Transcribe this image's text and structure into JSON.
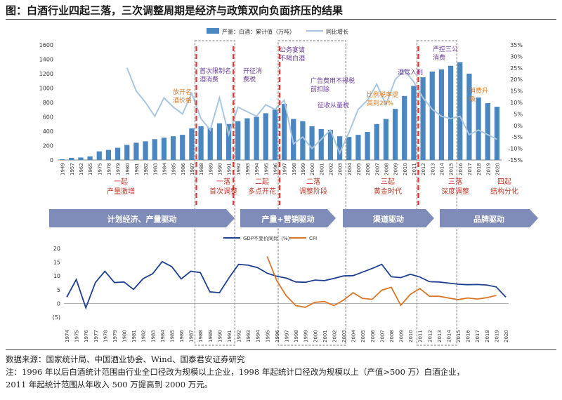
{
  "title": "图：白酒行业四起三落，三次调整周期是经济与政策双向负面挤压的结果",
  "footer": {
    "source": "数据来源：国家统计局、中国酒业协会、Wind、国泰君安证券研究",
    "note1": "注：1996 年以后白酒统计范围由行业全口径改为规模以上企业，1998 年起统计口径改为规模以上（产值>500 万）白酒企业，",
    "note2": "2011 年起统计范围从年收入 500 万提高到 2000 万元。"
  },
  "colors": {
    "bar": "#4a86bf",
    "line": "#a9c6e0",
    "gdp": "#1f3f8f",
    "cpi": "#d9772b",
    "phase_red": "#c0392b",
    "arrow": "#5a6aa8",
    "phase_dashed": "#e53935",
    "purple": "#6a3d9a",
    "orange": "#e07b23"
  },
  "chart_data": [
    {
      "type": "bar",
      "title": "",
      "legend": [
        "产量：白酒：累计值（万吨）",
        "同比增长"
      ],
      "legend_position": "top-right",
      "categories": [
        "1949",
        "1957",
        "1962",
        "1965",
        "1975",
        "1978",
        "1979",
        "1980",
        "1981",
        "1982",
        "1983",
        "1984",
        "1985",
        "1986",
        "1987",
        "1988",
        "1989",
        "1990",
        "1991",
        "1992",
        "1993",
        "1994",
        "1995",
        "1996",
        "1997",
        "1998",
        "1999",
        "2000",
        "2001",
        "2002",
        "2003",
        "2004",
        "2005",
        "2006",
        "2007",
        "2008",
        "2009",
        "2010",
        "2011",
        "2012",
        "2013",
        "2014",
        "2015",
        "2016",
        "2017",
        "2018",
        "2019",
        "2020"
      ],
      "series": [
        {
          "name": "产量：白酒：累计值（万吨）",
          "axis": "left",
          "values": [
            10,
            30,
            35,
            50,
            120,
            140,
            170,
            210,
            240,
            260,
            290,
            310,
            330,
            350,
            440,
            470,
            450,
            510,
            500,
            540,
            580,
            600,
            650,
            700,
            780,
            570,
            540,
            470,
            430,
            420,
            330,
            320,
            350,
            390,
            500,
            570,
            710,
            890,
            1030,
            1150,
            1230,
            1260,
            1310,
            1360,
            1200,
            870,
            790,
            740
          ]
        },
        {
          "name": "同比增长",
          "axis": "right",
          "values": [
            null,
            null,
            null,
            null,
            null,
            null,
            null,
            25,
            15,
            10,
            4,
            12,
            8,
            5,
            14,
            3,
            -2,
            12,
            -4,
            8,
            6,
            4,
            9,
            7,
            11,
            -8,
            -5,
            -10,
            -6,
            -2,
            -12,
            -3,
            7,
            11,
            18,
            9,
            20,
            24,
            19,
            12,
            7,
            4,
            3,
            4,
            -4,
            -2,
            -4,
            -6
          ]
        }
      ],
      "y_left": {
        "min": 0,
        "max": 1600,
        "ticks": [
          "0",
          "200",
          "400",
          "600",
          "800",
          "1000",
          "1200",
          "1400",
          "1600"
        ]
      },
      "y_right": {
        "min": -15,
        "max": 35,
        "ticks": [
          "35%",
          "30%",
          "25%",
          "20%",
          "15%",
          "10%",
          "5%",
          "0%",
          "-5%",
          "-10%",
          "-15%"
        ]
      },
      "annotations": {
        "purple": [
          "首次限制名酒消费",
          "开征消费税",
          "公务宴请不喝白酒",
          "广告费用不得税前扣除",
          "征收从量税",
          "酒驾入刑",
          "严控三公消费"
        ],
        "orange": [
          "放开名酒价格",
          "比例税率提高到20%",
          "消费升级"
        ],
        "orange_lines": [
          [
            "放开名",
            "酒价格"
          ],
          [
            "比例税率提",
            "高到20%"
          ],
          [
            "消费升",
            "级"
          ]
        ],
        "purple_lines": [
          [
            "首次限制名",
            "酒消费"
          ],
          [
            "开征消",
            "费税"
          ],
          [
            "公务宴请",
            "不喝白酒"
          ],
          [
            "广告费用不得税",
            "前扣除"
          ],
          [
            "征收从量税"
          ],
          [
            "酒驾入刑"
          ],
          [
            "严控三公",
            "消费"
          ]
        ]
      },
      "phases": [
        {
          "line1": "一起",
          "line2": "产量激增"
        },
        {
          "line1": "一落",
          "line2": "首次调整"
        },
        {
          "line1": "二起",
          "line2": "多点开花"
        },
        {
          "line1": "二落",
          "line2": "调整阶段"
        },
        {
          "line1": "三起",
          "line2": "黄金时代"
        },
        {
          "line1": "三落",
          "line2": "深度调整"
        },
        {
          "line1": "四起",
          "line2": "结构分化"
        }
      ],
      "drivers": [
        "计划经济、产量驱动",
        "产量+营销驱动",
        "渠道驱动",
        "品牌驱动"
      ]
    },
    {
      "type": "line",
      "title": "",
      "legend": [
        "GDP不变价同比（%）",
        "CPI"
      ],
      "legend_position": "top-center",
      "categories": [
        "1974",
        "1975",
        "1976",
        "1977",
        "1978",
        "1979",
        "1980",
        "1981",
        "1982",
        "1983",
        "1984",
        "1985",
        "1986",
        "1987",
        "1988",
        "1989",
        "1990",
        "1991",
        "1992",
        "1993",
        "1994",
        "1995",
        "1996",
        "1997",
        "1998",
        "1999",
        "2000",
        "2001",
        "2002",
        "2003",
        "2004",
        "2005",
        "2006",
        "2007",
        "2008",
        "2009",
        "2010",
        "2011",
        "2012",
        "2013",
        "2014",
        "2015",
        "2016",
        "2017",
        "2018",
        "2019",
        "2020"
      ],
      "series": [
        {
          "name": "GDP不变价同比（%）",
          "values": [
            2.3,
            8.7,
            -1.6,
            7.6,
            11.7,
            7.6,
            7.8,
            5.1,
            9.0,
            10.8,
            15.2,
            13.4,
            8.9,
            11.7,
            11.2,
            4.2,
            3.9,
            9.3,
            14.2,
            13.9,
            13.0,
            11.0,
            9.9,
            9.2,
            7.8,
            7.7,
            8.5,
            8.3,
            9.1,
            10.0,
            10.1,
            11.4,
            12.7,
            14.2,
            9.7,
            9.4,
            10.6,
            9.6,
            7.9,
            7.8,
            7.4,
            7.0,
            6.8,
            6.9,
            6.7,
            6.0,
            2.3
          ]
        },
        {
          "name": "CPI",
          "values": [
            null,
            null,
            null,
            null,
            null,
            null,
            null,
            null,
            null,
            null,
            null,
            null,
            null,
            null,
            null,
            null,
            null,
            null,
            null,
            null,
            null,
            17.1,
            8.3,
            2.8,
            -0.8,
            -1.4,
            0.4,
            0.7,
            -0.8,
            1.2,
            3.9,
            1.8,
            1.5,
            4.8,
            5.9,
            -0.7,
            3.3,
            5.4,
            2.6,
            2.6,
            2.0,
            1.4,
            2.0,
            1.6,
            2.1,
            2.9,
            null
          ]
        }
      ],
      "y": {
        "min": -5,
        "max": 20,
        "ticks": [
          "20",
          "15",
          "10",
          "5",
          "0",
          "(5)"
        ]
      }
    }
  ]
}
